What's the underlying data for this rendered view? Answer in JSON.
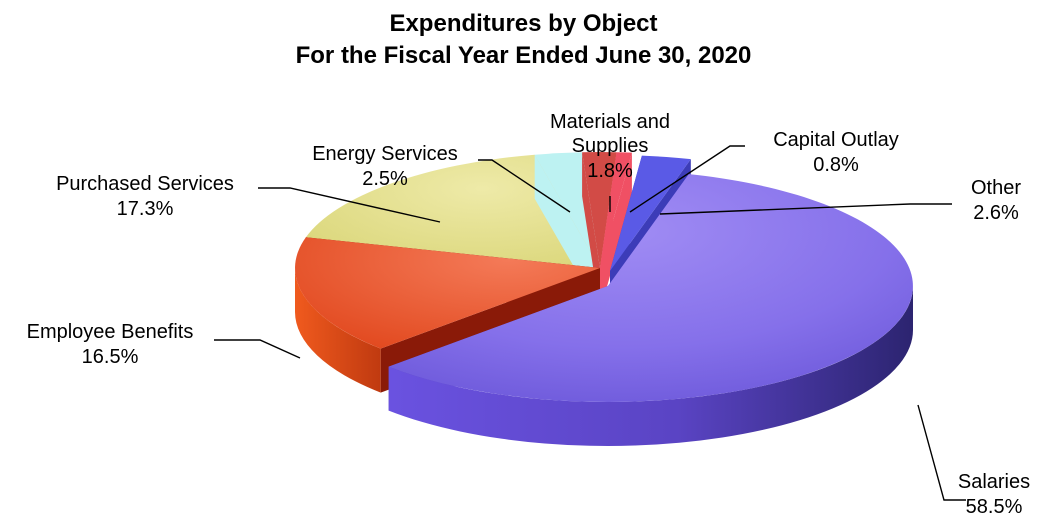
{
  "chart_data": {
    "type": "pie",
    "style": "3d-exploded",
    "title": "Expenditures by Object",
    "subtitle": "For the Fiscal Year Ended June 30, 2020",
    "unit": "%",
    "slices": [
      {
        "label": "Salaries",
        "label_lines": [
          "Salaries"
        ],
        "value": 58.5,
        "display": "58.5%",
        "color": "#7f68ec",
        "exploded": true
      },
      {
        "label": "Employee Benefits",
        "label_lines": [
          "Employee Benefits"
        ],
        "value": 16.5,
        "display": "16.5%",
        "color": "#ec5a32",
        "exploded": false
      },
      {
        "label": "Purchased Services",
        "label_lines": [
          "Purchased Services"
        ],
        "value": 17.3,
        "display": "17.3%",
        "color": "#e4e088",
        "exploded": false
      },
      {
        "label": "Energy Services",
        "label_lines": [
          "Energy Services"
        ],
        "value": 2.5,
        "display": "2.5%",
        "color": "#bdf2f2",
        "exploded": false
      },
      {
        "label": "Materials and Supplies",
        "label_lines": [
          "Materials and",
          "Supplies"
        ],
        "value": 1.8,
        "display": "1.8%",
        "color": "#d24b46",
        "exploded": false
      },
      {
        "label": "Capital Outlay",
        "label_lines": [
          "Capital Outlay"
        ],
        "value": 0.8,
        "display": "0.8%",
        "color": "#f05064",
        "exploded": false
      },
      {
        "label": "Other",
        "label_lines": [
          "Other"
        ],
        "value": 2.6,
        "display": "2.6%",
        "color": "#5a5ae6",
        "exploded": true
      }
    ]
  }
}
